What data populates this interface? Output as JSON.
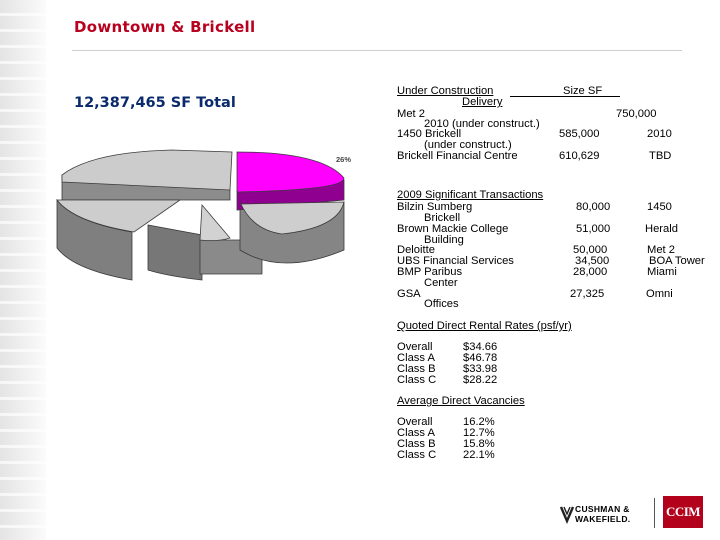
{
  "page": {
    "title": "Downtown & Brickell",
    "total": "12,387,465 SF Total"
  },
  "pie": {
    "slice_label": "26%",
    "colors": {
      "highlight": "#ff00ff",
      "base": "#cccccc",
      "side": "#808080"
    }
  },
  "construction": {
    "header": "Under Construction",
    "header_size": "Size SF",
    "header_delivery": "Delivery",
    "rows": [
      {
        "name": "Met 2",
        "note": "2010 (under construct.)",
        "size": "750,000",
        "delivery": ""
      },
      {
        "name": "1450 Brickell",
        "note": "(under construct.)",
        "size": "585,000",
        "delivery": "2010"
      },
      {
        "name": "Brickell Financial Centre",
        "note": "",
        "size": "610,629",
        "delivery": "TBD"
      }
    ]
  },
  "transactions": {
    "header": "2009 Significant Transactions",
    "rows": [
      {
        "name": "Bilzin Sumberg",
        "sub": "Brickell",
        "size": "80,000",
        "building": "1450"
      },
      {
        "name": "Brown Mackie College",
        "sub": "Building",
        "size": "51,000",
        "building": "Herald"
      },
      {
        "name": "Deloitte",
        "sub": "",
        "size": "50,000",
        "building": "Met 2"
      },
      {
        "name": "UBS Financial Services",
        "sub": "",
        "size": "34,500",
        "building": "BOA Tower"
      },
      {
        "name": "BMP Paribus",
        "sub": "Center",
        "size": "28,000",
        "building": "Miami"
      },
      {
        "name": "GSA",
        "sub": "Offices",
        "size": "27,325",
        "building": "Omni"
      }
    ]
  },
  "rates": {
    "header": "Quoted Direct Rental Rates (psf/yr)",
    "rows": [
      {
        "label": "Overall",
        "value": "$34.66"
      },
      {
        "label": "Class A",
        "value": "$46.78"
      },
      {
        "label": "Class B",
        "value": "$33.98"
      },
      {
        "label": "Class C",
        "value": "$28.22"
      }
    ]
  },
  "vacancies": {
    "header": "Average Direct Vacancies",
    "rows": [
      {
        "label": "Overall",
        "value": "16.2%"
      },
      {
        "label": "Class A",
        "value": "12.7%"
      },
      {
        "label": "Class B",
        "value": "15.8%"
      },
      {
        "label": "Class C",
        "value": "22.1%"
      }
    ]
  },
  "logos": {
    "cw_line1": "CUSHMAN &",
    "cw_line2": "WAKEFIELD.",
    "ccim": "CCIM"
  }
}
